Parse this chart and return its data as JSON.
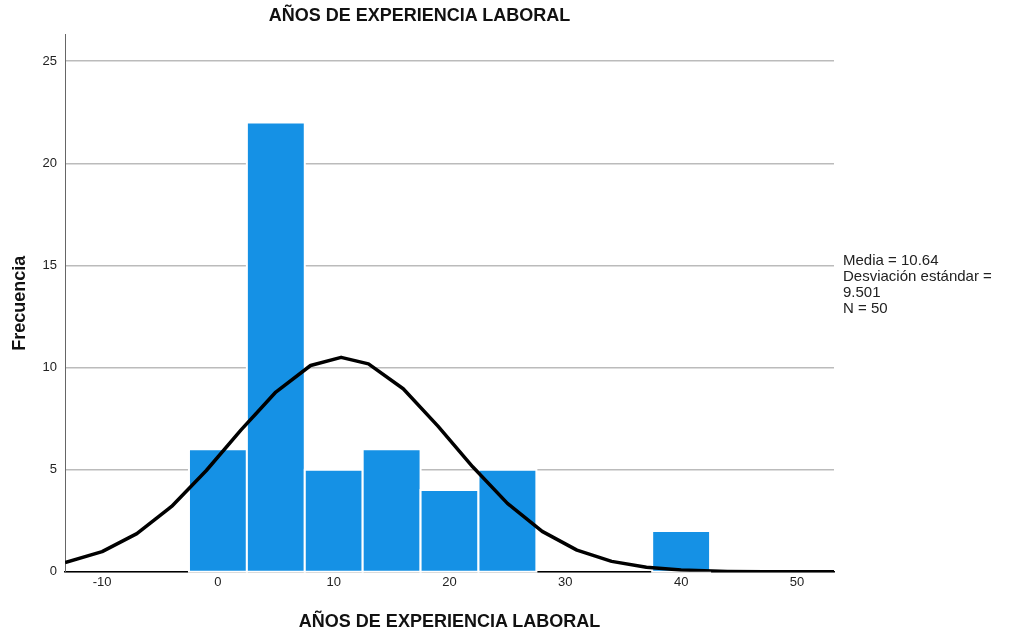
{
  "chart_data": {
    "type": "histogram",
    "title": "AÑOS DE EXPERIENCIA LABORAL",
    "xlabel": "AÑOS DE EXPERIENCIA LABORAL",
    "ylabel": "Frecuencia",
    "bins": [
      -2.5,
      2.5,
      7.5,
      12.5,
      17.5,
      22.5,
      27.5,
      32.5,
      37.5,
      42.5
    ],
    "values": [
      6,
      22,
      5,
      6,
      4,
      5,
      0,
      0,
      2
    ],
    "color": "#1591e5",
    "series": [
      {
        "type": "line",
        "color": "#000000",
        "x": [
          -13.2,
          -10,
          -7,
          -4,
          -1,
          2,
          5,
          8,
          10.64,
          13,
          16,
          19,
          22,
          25,
          28,
          31,
          34,
          37,
          40,
          44,
          48,
          53.2
        ],
        "values": [
          0.45,
          0.99,
          1.87,
          3.2,
          4.96,
          6.95,
          8.8,
          10.1,
          10.5,
          10.18,
          8.96,
          7.13,
          5.14,
          3.35,
          1.98,
          1.06,
          0.51,
          0.22,
          0.09,
          0.02,
          0,
          0
        ]
      }
    ],
    "xlim": [
      -13.2,
      53.2
    ],
    "xticks": [
      -10,
      0,
      10,
      20,
      30,
      40,
      50
    ],
    "ylim": [
      0,
      26.3
    ],
    "yticks": [
      0,
      5,
      10,
      15,
      20,
      25
    ],
    "grid": "y",
    "marker": "none",
    "annotations": [
      "Media = 10.64",
      "Desviación estándar = 9.501",
      "N = 50"
    ]
  }
}
